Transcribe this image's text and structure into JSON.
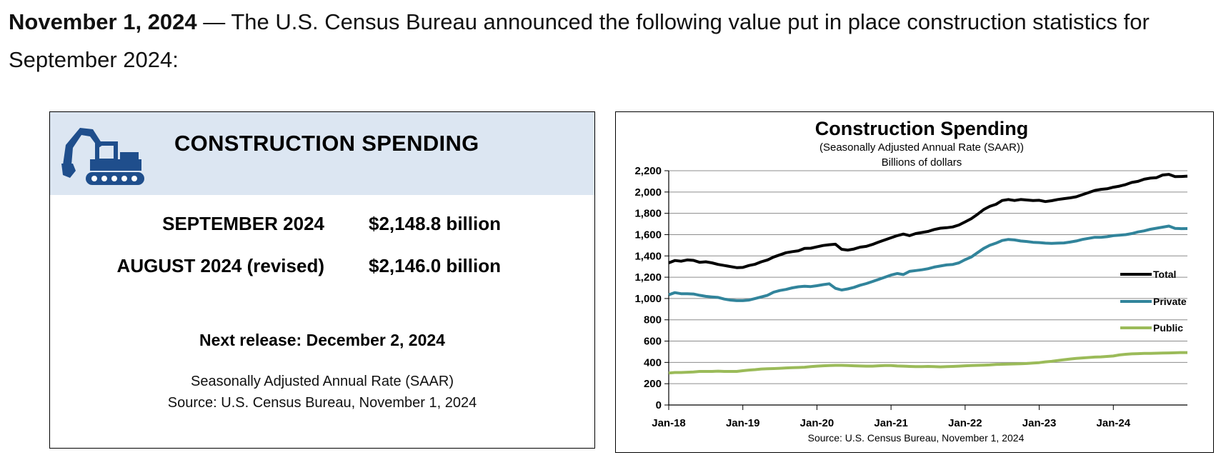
{
  "intro": {
    "date": "November 1, 2024",
    "text": " — The U.S. Census Bureau announced the following value put in place construction statistics for September 2024:"
  },
  "summary": {
    "title": "CONSTRUCTION SPENDING",
    "icon": "excavator-icon",
    "rows": [
      {
        "label": "SEPTEMBER 2024",
        "value": "$2,148.8 billion"
      },
      {
        "label": "AUGUST 2024 (revised)",
        "value": "$2,146.0 billion"
      }
    ],
    "next_release": "Next release: December 2, 2024",
    "note_saar": "Seasonally Adjusted Annual Rate (SAAR)",
    "note_source": "Source: U.S. Census Bureau, November 1, 2024",
    "header_color": "#dce6f2",
    "icon_color": "#1f4e8c"
  },
  "chart_data": {
    "type": "line",
    "title": "Construction  Spending",
    "subtitle": "(Seasonally Adjusted Annual Rate (SAAR))",
    "subtitle2": "Billions of dollars",
    "source": "Source: U.S. Census Bureau, November 1, 2024",
    "ylim": [
      0,
      2200
    ],
    "yticks": [
      "0",
      "200",
      "400",
      "600",
      "800",
      "1,000",
      "1,200",
      "1,400",
      "1,600",
      "1,800",
      "2,000",
      "2,200"
    ],
    "xticks": [
      "Jan-18",
      "Jan-19",
      "Jan-20",
      "Jan-21",
      "Jan-22",
      "Jan-23",
      "Jan-24"
    ],
    "x_start": "Jan-18",
    "x_end": "Sep-24",
    "grid": true,
    "legend_position": "right",
    "series": [
      {
        "name": "Total",
        "color": "#000000",
        "values": [
          1335,
          1357,
          1350,
          1362,
          1358,
          1340,
          1345,
          1335,
          1320,
          1310,
          1300,
          1290,
          1292,
          1310,
          1322,
          1345,
          1362,
          1390,
          1410,
          1430,
          1440,
          1448,
          1470,
          1472,
          1485,
          1498,
          1505,
          1510,
          1462,
          1455,
          1465,
          1482,
          1490,
          1508,
          1530,
          1550,
          1570,
          1590,
          1605,
          1590,
          1610,
          1620,
          1630,
          1648,
          1660,
          1665,
          1672,
          1690,
          1720,
          1750,
          1790,
          1835,
          1865,
          1885,
          1920,
          1930,
          1920,
          1930,
          1925,
          1920,
          1922,
          1910,
          1918,
          1930,
          1938,
          1945,
          1955,
          1975,
          1995,
          2015,
          2025,
          2030,
          2045,
          2055,
          2070,
          2090,
          2100,
          2120,
          2130,
          2135,
          2160,
          2166,
          2145,
          2146,
          2149
        ]
      },
      {
        "name": "Private",
        "color": "#31849b",
        "values": [
          1035,
          1055,
          1045,
          1045,
          1042,
          1030,
          1020,
          1015,
          1010,
          995,
          985,
          980,
          980,
          985,
          1000,
          1015,
          1030,
          1060,
          1075,
          1085,
          1100,
          1110,
          1115,
          1112,
          1120,
          1130,
          1138,
          1095,
          1080,
          1090,
          1105,
          1125,
          1140,
          1160,
          1180,
          1200,
          1220,
          1235,
          1225,
          1255,
          1262,
          1270,
          1280,
          1295,
          1305,
          1315,
          1320,
          1335,
          1365,
          1390,
          1430,
          1470,
          1500,
          1520,
          1545,
          1555,
          1550,
          1540,
          1535,
          1528,
          1525,
          1520,
          1518,
          1520,
          1522,
          1530,
          1540,
          1555,
          1565,
          1575,
          1575,
          1580,
          1590,
          1595,
          1600,
          1610,
          1625,
          1635,
          1650,
          1660,
          1670,
          1680,
          1658,
          1656,
          1657
        ]
      },
      {
        "name": "Public",
        "color": "#9bbb59",
        "values": [
          300,
          305,
          305,
          308,
          310,
          315,
          315,
          315,
          318,
          315,
          315,
          315,
          322,
          328,
          332,
          338,
          340,
          342,
          345,
          348,
          350,
          352,
          355,
          360,
          365,
          368,
          370,
          372,
          372,
          370,
          368,
          366,
          365,
          365,
          368,
          370,
          370,
          366,
          365,
          362,
          360,
          360,
          362,
          360,
          358,
          360,
          362,
          365,
          368,
          370,
          372,
          374,
          376,
          380,
          382,
          384,
          386,
          388,
          390,
          394,
          398,
          405,
          410,
          418,
          425,
          432,
          438,
          442,
          446,
          450,
          452,
          456,
          460,
          470,
          476,
          480,
          482,
          484,
          485,
          486,
          488,
          489,
          490,
          492,
          492
        ]
      }
    ]
  }
}
